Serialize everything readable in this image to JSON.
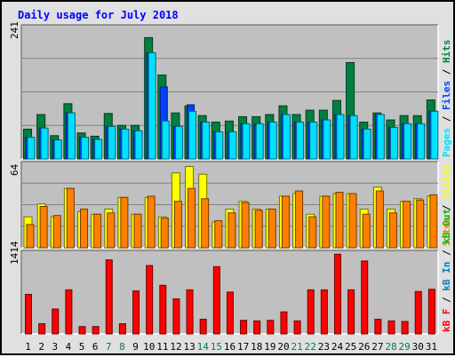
{
  "title": "Daily usage for July 2018",
  "colors": {
    "title": "#0000ff",
    "background": "#e0e0e0",
    "plot_background": "#c0c0c0",
    "hits": "#008040",
    "files": "#0040ff",
    "pages": "#00e0ff",
    "visits": "#ffff00",
    "sites": "#ff8000",
    "kbin": "#0080c0",
    "kbout": "#00c000",
    "kbf": "#ff0000",
    "weekend_day": "#008040",
    "weekday": "#000000"
  },
  "chart_data": [
    {
      "type": "bar",
      "panel": "hits-files-pages",
      "ymax_label": "241",
      "ylim": [
        0,
        241
      ],
      "legend": [
        {
          "key": "pages",
          "label": "Pages"
        },
        {
          "key": "sep1",
          "label": " / "
        },
        {
          "key": "files",
          "label": "Files"
        },
        {
          "key": "sep2",
          "label": " / "
        },
        {
          "key": "hits",
          "label": "Hits"
        }
      ],
      "categories": [
        "1",
        "2",
        "3",
        "4",
        "5",
        "6",
        "7",
        "8",
        "9",
        "10",
        "11",
        "12",
        "13",
        "14",
        "15",
        "16",
        "17",
        "18",
        "19",
        "20",
        "21",
        "22",
        "23",
        "24",
        "25",
        "26",
        "27",
        "28",
        "29",
        "30",
        "31"
      ],
      "series": [
        {
          "name": "Hits",
          "values": [
            55,
            82,
            43,
            102,
            48,
            42,
            84,
            62,
            62,
            224,
            155,
            85,
            98,
            80,
            68,
            70,
            78,
            78,
            82,
            98,
            82,
            90,
            90,
            108,
            178,
            68,
            85,
            72,
            80,
            80,
            109
          ]
        },
        {
          "name": "Files",
          "values": [
            40,
            57,
            35,
            85,
            40,
            36,
            60,
            55,
            52,
            196,
            133,
            60,
            100,
            68,
            50,
            50,
            65,
            65,
            68,
            82,
            68,
            68,
            72,
            82,
            80,
            55,
            82,
            58,
            65,
            65,
            88
          ]
        },
        {
          "name": "Pages",
          "values": [
            40,
            57,
            35,
            85,
            40,
            36,
            60,
            55,
            52,
            196,
            70,
            60,
            88,
            68,
            50,
            50,
            65,
            65,
            68,
            82,
            68,
            68,
            72,
            82,
            80,
            55,
            82,
            58,
            65,
            65,
            88
          ]
        }
      ]
    },
    {
      "type": "bar",
      "panel": "visits-sites",
      "ymax_label": "64",
      "ylim": [
        0,
        64
      ],
      "legend": [
        {
          "key": "sites",
          "label": "Sites"
        },
        {
          "key": "sep3",
          "label": " / "
        },
        {
          "key": "visits",
          "label": "Visits"
        }
      ],
      "categories": [
        "1",
        "2",
        "3",
        "4",
        "5",
        "6",
        "7",
        "8",
        "9",
        "10",
        "11",
        "12",
        "13",
        "14",
        "15",
        "16",
        "17",
        "18",
        "19",
        "20",
        "21",
        "22",
        "23",
        "24",
        "25",
        "26",
        "27",
        "28",
        "29",
        "30",
        "31"
      ],
      "series": [
        {
          "name": "Visits",
          "values": [
            24,
            34,
            24,
            46,
            28,
            26,
            30,
            39,
            26,
            39,
            24,
            58,
            63,
            57,
            20,
            30,
            36,
            30,
            30,
            40,
            42,
            26,
            40,
            42,
            42,
            30,
            47,
            30,
            36,
            38,
            40
          ]
        },
        {
          "name": "Sites",
          "values": [
            18,
            32,
            25,
            46,
            30,
            26,
            27,
            39,
            26,
            40,
            23,
            36,
            46,
            38,
            21,
            27,
            35,
            29,
            30,
            40,
            44,
            24,
            40,
            43,
            42,
            26,
            44,
            27,
            36,
            37,
            41
          ]
        }
      ]
    },
    {
      "type": "bar",
      "panel": "kbytes",
      "ymax_label": "1414",
      "ylim": [
        0,
        1414
      ],
      "legend": [
        {
          "key": "kbf",
          "label": "kB F"
        },
        {
          "key": "sep4",
          "label": " / "
        },
        {
          "key": "kbin",
          "label": "kB In"
        },
        {
          "key": "sep5",
          "label": " / "
        },
        {
          "key": "kbout",
          "label": "kB Out"
        }
      ],
      "categories": [
        "1",
        "2",
        "3",
        "4",
        "5",
        "6",
        "7",
        "8",
        "9",
        "10",
        "11",
        "12",
        "13",
        "14",
        "15",
        "16",
        "17",
        "18",
        "19",
        "20",
        "21",
        "22",
        "23",
        "24",
        "25",
        "26",
        "27",
        "28",
        "29",
        "30",
        "31"
      ],
      "series": [
        {
          "name": "kB F",
          "values": [
            700,
            180,
            440,
            780,
            130,
            130,
            1310,
            180,
            760,
            1210,
            860,
            620,
            780,
            260,
            1190,
            740,
            240,
            230,
            240,
            390,
            230,
            780,
            780,
            1410,
            780,
            1290,
            260,
            230,
            220,
            750,
            790
          ]
        }
      ]
    }
  ],
  "day_labels": [
    "1",
    "2",
    "3",
    "4",
    "5",
    "6",
    "7",
    "8",
    "9",
    "10",
    "11",
    "12",
    "13",
    "14",
    "15",
    "16",
    "17",
    "18",
    "19",
    "20",
    "21",
    "22",
    "23",
    "24",
    "25",
    "26",
    "27",
    "28",
    "29",
    "30",
    "31"
  ],
  "weekend_days": [
    "7",
    "8",
    "14",
    "15",
    "21",
    "22",
    "28",
    "29"
  ]
}
